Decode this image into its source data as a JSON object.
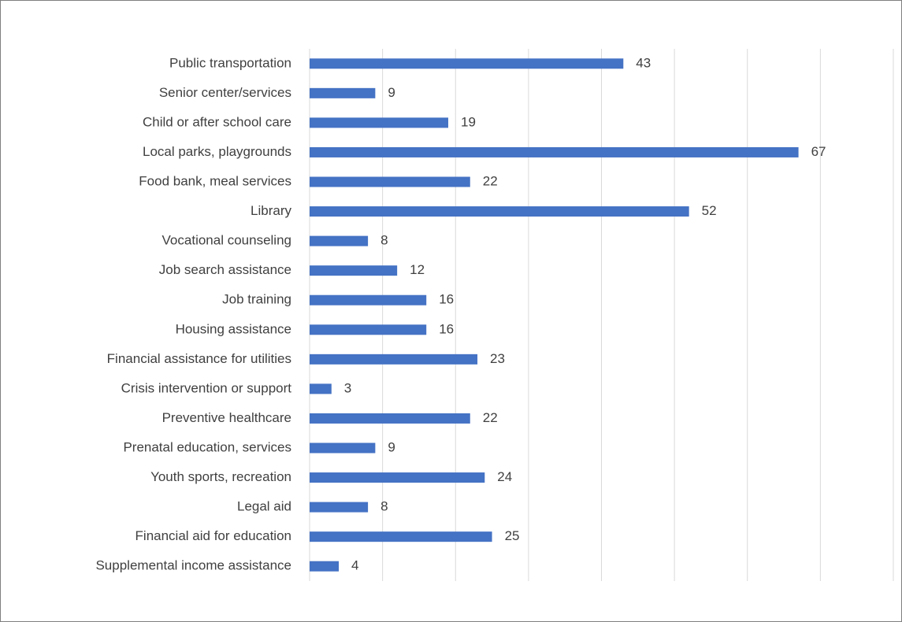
{
  "chart_data": {
    "type": "bar",
    "orientation": "horizontal",
    "categories": [
      "Public transportation",
      "Senior center/services",
      "Child or after school care",
      "Local parks, playgrounds",
      "Food bank, meal services",
      "Library",
      "Vocational counseling",
      "Job search assistance",
      "Job training",
      "Housing assistance",
      "Financial assistance for utilities",
      "Crisis intervention or support",
      "Preventive healthcare",
      "Prenatal education, services",
      "Youth sports, recreation",
      "Legal aid",
      "Financial aid for education",
      "Supplemental income assistance"
    ],
    "values": [
      43,
      9,
      19,
      67,
      22,
      52,
      8,
      12,
      16,
      16,
      23,
      3,
      22,
      9,
      24,
      8,
      25,
      4
    ],
    "color": "#4472c4",
    "xlim": [
      0,
      80
    ],
    "xticks": [
      0,
      10,
      20,
      30,
      40,
      50,
      60,
      70,
      80
    ],
    "grid": true
  }
}
